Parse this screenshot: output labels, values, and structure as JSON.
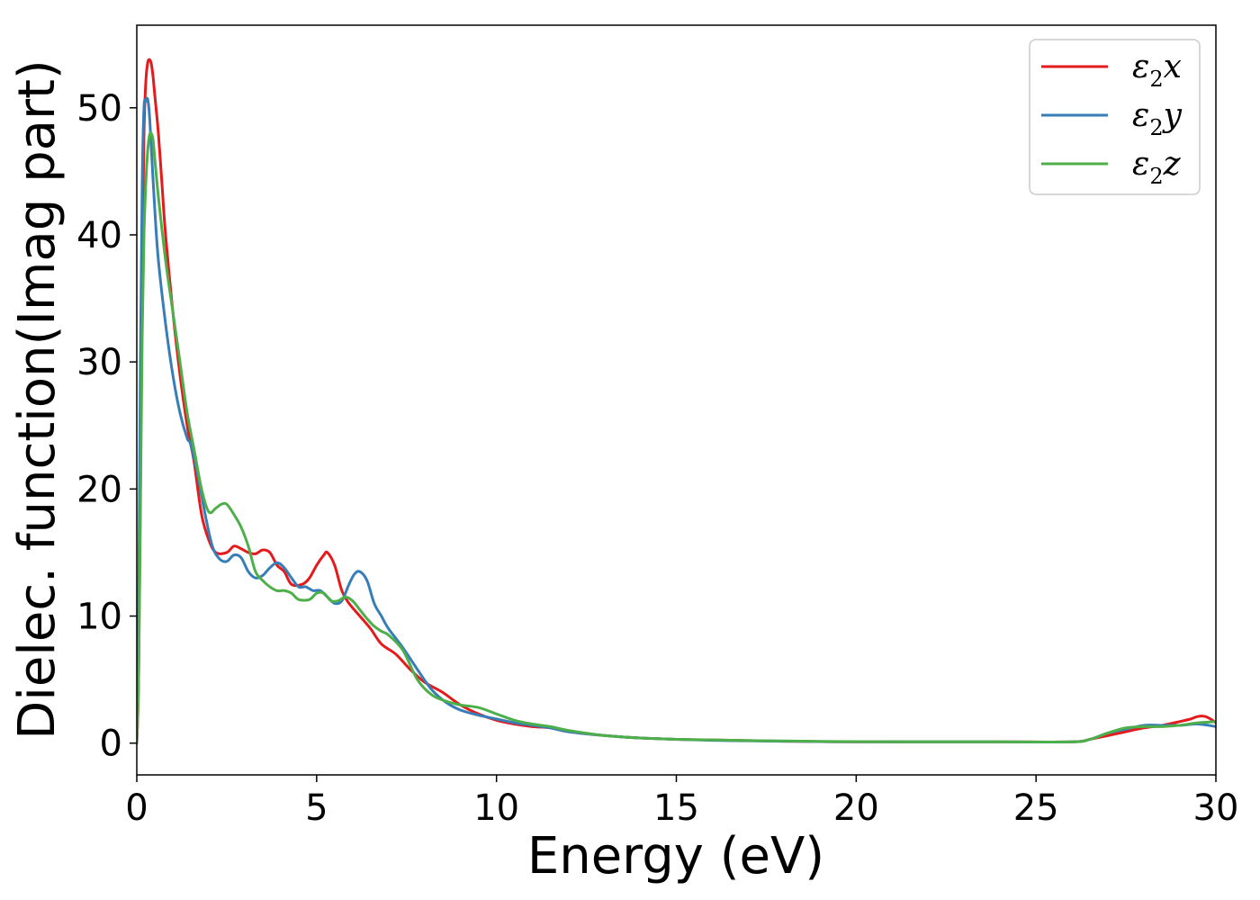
{
  "chart_data": {
    "type": "line",
    "xlabel": "Energy (eV)",
    "ylabel": "Dielec. function(Imag part)",
    "xlim": [
      0,
      30
    ],
    "ylim": [
      -2.5,
      56.5
    ],
    "xticks": [
      0,
      5,
      10,
      15,
      20,
      25,
      30
    ],
    "yticks": [
      0,
      10,
      20,
      30,
      40,
      50
    ],
    "xtick_labels": [
      "0",
      "5",
      "10",
      "15",
      "20",
      "25",
      "30"
    ],
    "ytick_labels": [
      "0",
      "10",
      "20",
      "30",
      "40",
      "50"
    ],
    "grid": false,
    "legend_position": "top-right",
    "series": [
      {
        "name": "ε2x",
        "legend_main": "ε",
        "legend_sub": "2",
        "legend_var": "x",
        "color": "#e41a1c",
        "x": [
          0,
          0.05,
          0.1,
          0.15,
          0.2,
          0.25,
          0.3,
          0.35,
          0.4,
          0.45,
          0.5,
          0.6,
          0.7,
          0.8,
          1.0,
          1.2,
          1.4,
          1.5,
          1.6,
          1.8,
          2.0,
          2.2,
          2.5,
          2.7,
          2.9,
          3.1,
          3.3,
          3.5,
          3.7,
          3.9,
          4.1,
          4.3,
          4.6,
          4.8,
          5.0,
          5.2,
          5.3,
          5.5,
          5.7,
          5.9,
          6.2,
          6.5,
          6.8,
          7.2,
          7.6,
          8.0,
          8.5,
          9.0,
          9.5,
          10.0,
          10.5,
          11.0,
          11.5,
          12.0,
          13.0,
          14.0,
          15.0,
          16.0,
          17.0,
          18.0,
          19.0,
          20.0,
          22.0,
          24.0,
          26.0,
          26.5,
          27.0,
          27.5,
          28.0,
          28.5,
          29.0,
          29.3,
          29.5,
          29.7,
          29.85,
          30.0
        ],
        "y": [
          0,
          5,
          20,
          38,
          48,
          52,
          53.5,
          53.8,
          53.5,
          52.5,
          51,
          48,
          44,
          40,
          34,
          29,
          25,
          23.5,
          22,
          18,
          16,
          15,
          15,
          15.5,
          15.3,
          15,
          14.9,
          15.2,
          15,
          14,
          13.5,
          12.5,
          12.5,
          13,
          14,
          14.8,
          15,
          14,
          12,
          11,
          10,
          9,
          7.8,
          7,
          5.8,
          4.8,
          4,
          3,
          2.3,
          1.8,
          1.5,
          1.3,
          1.2,
          0.9,
          0.6,
          0.4,
          0.3,
          0.25,
          0.2,
          0.15,
          0.12,
          0.1,
          0.1,
          0.1,
          0.1,
          0.3,
          0.6,
          0.9,
          1.2,
          1.4,
          1.7,
          1.9,
          2.1,
          2.1,
          1.9,
          1.6
        ]
      },
      {
        "name": "ε2y",
        "legend_main": "ε",
        "legend_sub": "2",
        "legend_var": "y",
        "color": "#377eb8",
        "x": [
          0,
          0.05,
          0.1,
          0.15,
          0.2,
          0.25,
          0.3,
          0.35,
          0.4,
          0.5,
          0.6,
          0.8,
          1.0,
          1.2,
          1.4,
          1.5,
          1.7,
          1.9,
          2.1,
          2.3,
          2.5,
          2.7,
          2.9,
          3.1,
          3.3,
          3.5,
          3.7,
          3.9,
          4.1,
          4.3,
          4.5,
          4.7,
          4.9,
          5.1,
          5.3,
          5.5,
          5.7,
          5.9,
          6.05,
          6.2,
          6.4,
          6.6,
          6.8,
          7.0,
          7.4,
          7.8,
          8.2,
          8.6,
          9.0,
          9.5,
          10.0,
          10.5,
          11.0,
          11.5,
          12.0,
          13.0,
          14.0,
          15.0,
          16.0,
          17.0,
          18.0,
          19.0,
          20.0,
          22.0,
          24.0,
          26.0,
          26.5,
          27.0,
          27.5,
          28.0,
          28.5,
          29.0,
          29.5,
          30.0
        ],
        "y": [
          0,
          10,
          30,
          44,
          50,
          50.5,
          50.7,
          49.5,
          47,
          42,
          38,
          33,
          29,
          26,
          24,
          23.5,
          21,
          18,
          15.5,
          14.5,
          14.3,
          14.8,
          14.6,
          13.5,
          13,
          13.2,
          13.8,
          14.2,
          13.8,
          13,
          12.3,
          12.3,
          12,
          12,
          11.5,
          11,
          11.2,
          12.5,
          13.3,
          13.5,
          12.8,
          11,
          10,
          9,
          7.5,
          5.8,
          4.2,
          3.2,
          2.6,
          2.2,
          1.9,
          1.6,
          1.4,
          1.2,
          0.9,
          0.6,
          0.4,
          0.3,
          0.22,
          0.18,
          0.15,
          0.12,
          0.1,
          0.1,
          0.1,
          0.1,
          0.3,
          0.8,
          1.1,
          1.4,
          1.4,
          1.4,
          1.5,
          1.3
        ]
      },
      {
        "name": "ε2z",
        "legend_main": "ε",
        "legend_sub": "2",
        "legend_var": "z",
        "color": "#4daf4a",
        "x": [
          0,
          0.05,
          0.1,
          0.15,
          0.2,
          0.25,
          0.3,
          0.35,
          0.4,
          0.45,
          0.5,
          0.6,
          0.8,
          1.0,
          1.2,
          1.4,
          1.6,
          1.8,
          2.0,
          2.2,
          2.35,
          2.5,
          2.7,
          2.9,
          3.1,
          3.3,
          3.5,
          3.7,
          3.9,
          4.1,
          4.3,
          4.5,
          4.8,
          5.0,
          5.2,
          5.4,
          5.6,
          5.8,
          6.0,
          6.2,
          6.4,
          6.6,
          6.8,
          7.0,
          7.4,
          7.8,
          8.2,
          8.6,
          9.0,
          9.5,
          10.0,
          10.5,
          11.0,
          11.5,
          12.0,
          13.0,
          14.0,
          15.0,
          16.0,
          17.0,
          18.0,
          19.0,
          20.0,
          22.0,
          24.0,
          26.0,
          26.5,
          27.0,
          27.5,
          28.0,
          28.5,
          29.0,
          29.5,
          30.0
        ],
        "y": [
          0,
          5,
          18,
          32,
          40,
          44,
          46.5,
          47.8,
          48,
          47.5,
          46,
          43,
          38,
          34,
          30,
          26,
          23,
          20,
          18.2,
          18.5,
          18.8,
          18.8,
          18,
          17,
          15.5,
          13.5,
          12.8,
          12.3,
          12,
          12,
          11.8,
          11.3,
          11.3,
          11.8,
          11.8,
          11.2,
          11.2,
          11.5,
          11.2,
          10.5,
          9.8,
          9.2,
          8.8,
          8.5,
          7.3,
          5,
          3.8,
          3.3,
          3,
          2.8,
          2.3,
          1.8,
          1.5,
          1.3,
          1.0,
          0.6,
          0.4,
          0.3,
          0.25,
          0.2,
          0.17,
          0.14,
          0.12,
          0.1,
          0.1,
          0.1,
          0.3,
          0.8,
          1.2,
          1.3,
          1.3,
          1.4,
          1.6,
          1.7
        ]
      }
    ]
  }
}
